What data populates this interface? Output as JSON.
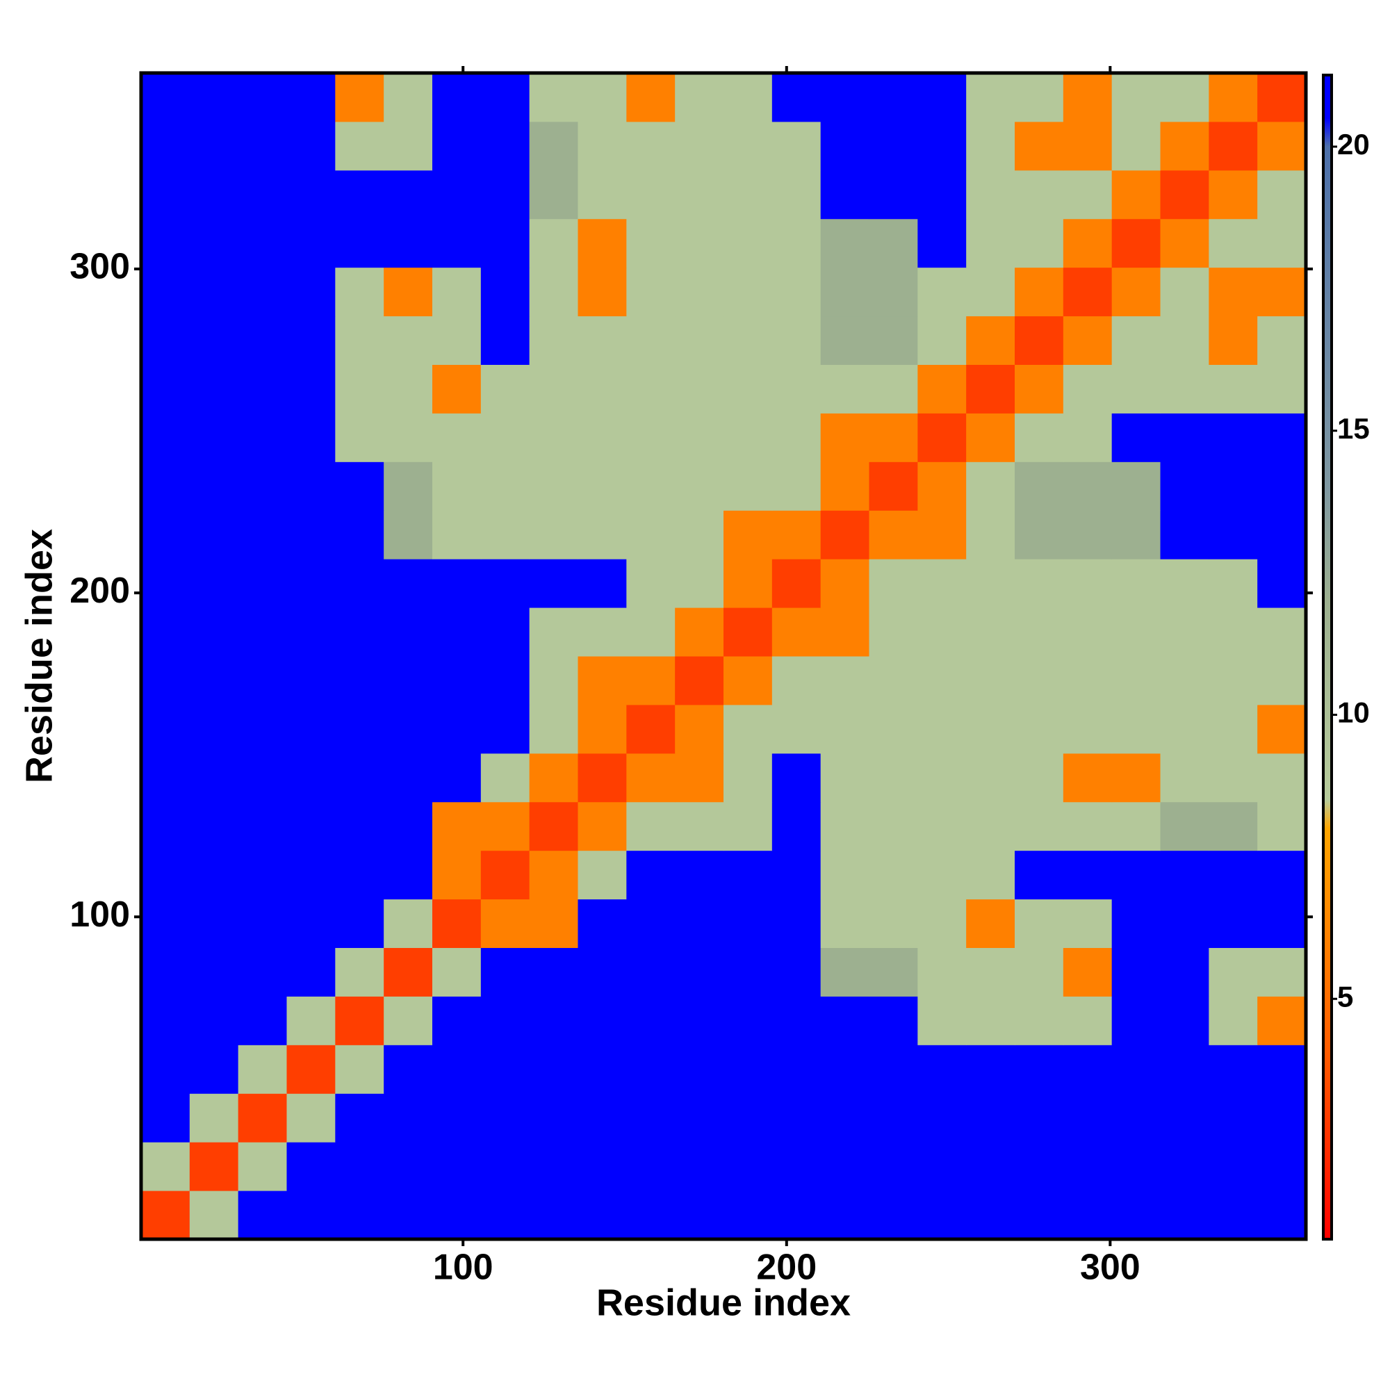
{
  "chart_data": {
    "type": "heatmap",
    "xlabel": "Residue index",
    "ylabel": "Residue index",
    "bins": [
      0.5,
      15.5,
      30.5,
      45.5,
      60.5,
      75.5,
      90.5,
      105.5,
      120.5,
      135.5,
      150.5,
      165.5,
      180.5,
      195.5,
      210.5,
      225.5,
      240.5,
      255.5,
      270.5,
      285.5,
      300.5,
      315.5,
      330.5,
      345.5,
      360.5
    ],
    "xlim": [
      0.5,
      360.5
    ],
    "ylim": [
      0.5,
      360.5
    ],
    "xticks": [
      100,
      200,
      300
    ],
    "yticks": [
      100,
      200,
      300
    ],
    "zlim": [
      0.77,
      21.26
    ],
    "zticks": [
      5,
      10,
      15,
      20
    ],
    "colorscale": [
      [
        0.77,
        "#ff0000"
      ],
      [
        4,
        "#ff5a00"
      ],
      [
        8,
        "#ffa500"
      ],
      [
        8.5,
        "#b8cc9c"
      ],
      [
        12,
        "#9db090"
      ],
      [
        14,
        "#7f98a2"
      ],
      [
        20,
        "#4d70aa"
      ],
      [
        20.5,
        "#0000ff"
      ],
      [
        21.26,
        "#0000ff"
      ]
    ],
    "z": [
      [
        3,
        9,
        21,
        21,
        21,
        21,
        21,
        21,
        21,
        21,
        21,
        21,
        21,
        21,
        21,
        21,
        21,
        21,
        21,
        21,
        21,
        21,
        21,
        21
      ],
      [
        9,
        3,
        9,
        21,
        21,
        21,
        21,
        21,
        21,
        21,
        21,
        21,
        21,
        21,
        21,
        21,
        21,
        21,
        21,
        21,
        21,
        21,
        21,
        21
      ],
      [
        21,
        9,
        3,
        9,
        21,
        21,
        21,
        21,
        21,
        21,
        21,
        21,
        21,
        21,
        21,
        21,
        21,
        21,
        21,
        21,
        21,
        21,
        21,
        21
      ],
      [
        21,
        21,
        9,
        3,
        9,
        21,
        21,
        21,
        21,
        21,
        21,
        21,
        21,
        21,
        21,
        21,
        21,
        21,
        21,
        21,
        21,
        21,
        21,
        21
      ],
      [
        21,
        21,
        21,
        9,
        3,
        9,
        21,
        21,
        21,
        21,
        21,
        21,
        21,
        21,
        21,
        21,
        9,
        9,
        9,
        9,
        21,
        21,
        9,
        6
      ],
      [
        21,
        21,
        21,
        21,
        9,
        3,
        9,
        21,
        21,
        21,
        21,
        21,
        21,
        21,
        12,
        12,
        9,
        9,
        9,
        6,
        21,
        21,
        9,
        9
      ],
      [
        21,
        21,
        21,
        21,
        21,
        9,
        3,
        6,
        6,
        21,
        21,
        21,
        21,
        21,
        9,
        9,
        9,
        6,
        9,
        9,
        21,
        21,
        21,
        21
      ],
      [
        21,
        21,
        21,
        21,
        21,
        21,
        6,
        3,
        6,
        9,
        21,
        21,
        21,
        21,
        9,
        9,
        9,
        9,
        21,
        21,
        21,
        21,
        21,
        21
      ],
      [
        21,
        21,
        21,
        21,
        21,
        21,
        6,
        6,
        3,
        6,
        9,
        9,
        9,
        21,
        9,
        9,
        9,
        9,
        9,
        9,
        9,
        12,
        12,
        9
      ],
      [
        21,
        21,
        21,
        21,
        21,
        21,
        21,
        9,
        6,
        3,
        6,
        6,
        9,
        21,
        9,
        9,
        9,
        9,
        9,
        6,
        6,
        9,
        9,
        9
      ],
      [
        21,
        21,
        21,
        21,
        21,
        21,
        21,
        21,
        9,
        6,
        3,
        6,
        9,
        9,
        9,
        9,
        9,
        9,
        9,
        9,
        9,
        9,
        9,
        6
      ],
      [
        21,
        21,
        21,
        21,
        21,
        21,
        21,
        21,
        9,
        6,
        6,
        3,
        6,
        9,
        9,
        9,
        9,
        9,
        9,
        9,
        9,
        9,
        9,
        9
      ],
      [
        21,
        21,
        21,
        21,
        21,
        21,
        21,
        21,
        9,
        9,
        9,
        6,
        3,
        6,
        6,
        9,
        9,
        9,
        9,
        9,
        9,
        9,
        9,
        9
      ],
      [
        21,
        21,
        21,
        21,
        21,
        21,
        21,
        21,
        21,
        21,
        9,
        9,
        6,
        3,
        6,
        9,
        9,
        9,
        9,
        9,
        9,
        9,
        9,
        21
      ],
      [
        21,
        21,
        21,
        21,
        21,
        12,
        9,
        9,
        9,
        9,
        9,
        9,
        6,
        6,
        3,
        6,
        6,
        9,
        12,
        12,
        12,
        21,
        21,
        21
      ],
      [
        21,
        21,
        21,
        21,
        21,
        12,
        9,
        9,
        9,
        9,
        9,
        9,
        9,
        9,
        6,
        3,
        6,
        9,
        12,
        12,
        12,
        21,
        21,
        21
      ],
      [
        21,
        21,
        21,
        21,
        9,
        9,
        9,
        9,
        9,
        9,
        9,
        9,
        9,
        9,
        6,
        6,
        3,
        6,
        9,
        9,
        21,
        21,
        21,
        21
      ],
      [
        21,
        21,
        21,
        21,
        9,
        9,
        6,
        9,
        9,
        9,
        9,
        9,
        9,
        9,
        9,
        9,
        6,
        3,
        6,
        9,
        9,
        9,
        9,
        9
      ],
      [
        21,
        21,
        21,
        21,
        9,
        9,
        9,
        21,
        9,
        9,
        9,
        9,
        9,
        9,
        12,
        12,
        9,
        6,
        3,
        6,
        9,
        9,
        6,
        9
      ],
      [
        21,
        21,
        21,
        21,
        9,
        6,
        9,
        21,
        9,
        6,
        9,
        9,
        9,
        9,
        12,
        12,
        9,
        9,
        6,
        3,
        6,
        9,
        6,
        6
      ],
      [
        21,
        21,
        21,
        21,
        21,
        21,
        21,
        21,
        9,
        6,
        9,
        9,
        9,
        9,
        12,
        12,
        21,
        9,
        9,
        6,
        3,
        6,
        9,
        9
      ],
      [
        21,
        21,
        21,
        21,
        21,
        21,
        21,
        21,
        12,
        9,
        9,
        9,
        9,
        9,
        21,
        21,
        21,
        9,
        9,
        9,
        6,
        3,
        6,
        9
      ],
      [
        21,
        21,
        21,
        21,
        9,
        9,
        21,
        21,
        12,
        9,
        9,
        9,
        9,
        9,
        21,
        21,
        21,
        9,
        6,
        6,
        9,
        6,
        3,
        6
      ],
      [
        21,
        21,
        21,
        21,
        6,
        9,
        21,
        21,
        9,
        9,
        6,
        9,
        9,
        21,
        21,
        21,
        21,
        9,
        9,
        6,
        9,
        9,
        6,
        3
      ]
    ]
  }
}
